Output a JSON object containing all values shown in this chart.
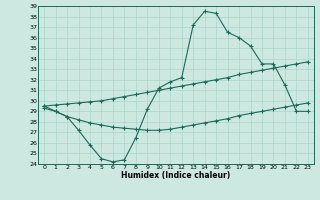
{
  "xlabel": "Humidex (Indice chaleur)",
  "bg_color": "#cce8e0",
  "grid_color": "#aad4cc",
  "line_color": "#1a6b5a",
  "xlim": [
    -0.5,
    23.5
  ],
  "ylim": [
    24,
    39
  ],
  "xticks": [
    0,
    1,
    2,
    3,
    4,
    5,
    6,
    7,
    8,
    9,
    10,
    11,
    12,
    13,
    14,
    15,
    16,
    17,
    18,
    19,
    20,
    21,
    22,
    23
  ],
  "yticks": [
    24,
    25,
    26,
    27,
    28,
    29,
    30,
    31,
    32,
    33,
    34,
    35,
    36,
    37,
    38,
    39
  ],
  "series1_x": [
    0,
    1,
    2,
    3,
    4,
    5,
    6,
    7,
    8,
    9,
    10,
    11,
    12,
    13,
    14,
    15,
    16,
    17,
    18,
    19,
    20,
    21,
    22,
    23
  ],
  "series1_y": [
    29.5,
    29.0,
    28.5,
    27.2,
    25.8,
    24.5,
    24.2,
    24.4,
    26.5,
    29.2,
    31.2,
    31.8,
    32.2,
    37.2,
    38.5,
    38.3,
    36.5,
    36.0,
    35.2,
    33.5,
    33.5,
    31.5,
    29.0,
    29.0
  ],
  "series2_x": [
    0,
    1,
    2,
    3,
    4,
    5,
    6,
    7,
    8,
    9,
    10,
    11,
    12,
    13,
    14,
    15,
    16,
    17,
    18,
    19,
    20,
    21,
    22,
    23
  ],
  "series2_y": [
    29.5,
    29.6,
    29.7,
    29.8,
    29.9,
    30.0,
    30.2,
    30.4,
    30.6,
    30.8,
    31.0,
    31.2,
    31.4,
    31.6,
    31.8,
    32.0,
    32.2,
    32.5,
    32.7,
    32.9,
    33.1,
    33.3,
    33.5,
    33.7
  ],
  "series3_x": [
    0,
    1,
    2,
    3,
    4,
    5,
    6,
    7,
    8,
    9,
    10,
    11,
    12,
    13,
    14,
    15,
    16,
    17,
    18,
    19,
    20,
    21,
    22,
    23
  ],
  "series3_y": [
    29.3,
    29.0,
    28.5,
    28.2,
    27.9,
    27.7,
    27.5,
    27.4,
    27.3,
    27.2,
    27.2,
    27.3,
    27.5,
    27.7,
    27.9,
    28.1,
    28.3,
    28.6,
    28.8,
    29.0,
    29.2,
    29.4,
    29.6,
    29.8
  ]
}
